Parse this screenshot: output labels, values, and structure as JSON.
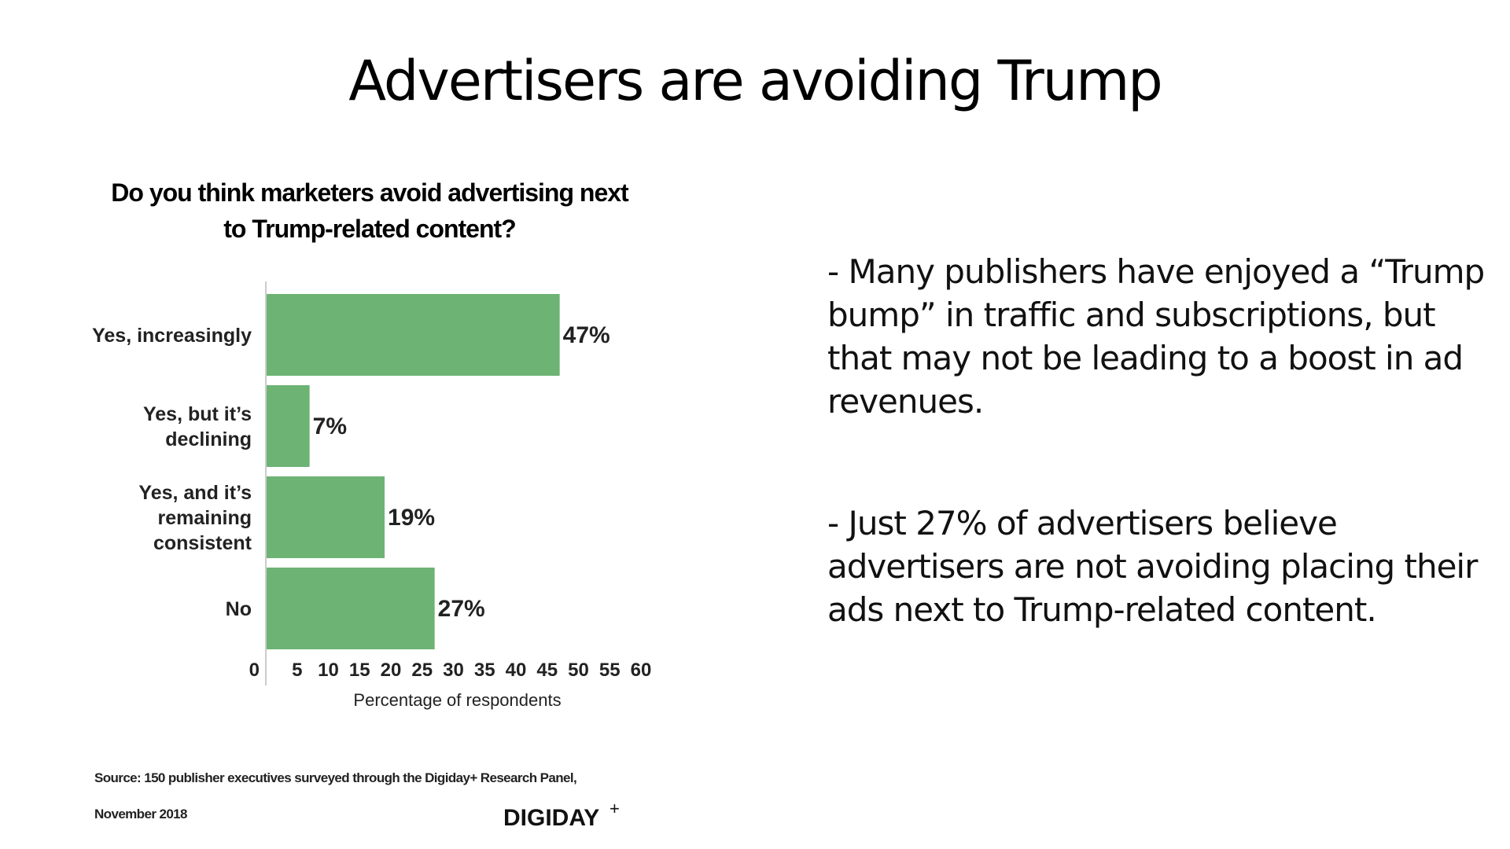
{
  "slide": {
    "title": "Advertisers are avoiding Trump",
    "bullets": [
      "- Many publishers have enjoyed a “Trump bump” in traffic and subscriptions, but that may not be leading to a boost in ad revenues.",
      "- Just 27% of advertisers believe advertisers are not avoiding placing their ads next to Trump-related content."
    ]
  },
  "footer": {
    "source": "Source: 150 publisher executives surveyed through the Digiday+ Research Panel,",
    "date": "November 2018",
    "brand": "DIGIDAY",
    "brand_mark": "+"
  },
  "chart_data": {
    "type": "bar",
    "orientation": "horizontal",
    "title_lines": [
      "Do you think marketers avoid advertising next",
      "to Trump-related content?"
    ],
    "categories": [
      [
        "Yes, increasingly"
      ],
      [
        "Yes, but it’s",
        "declining"
      ],
      [
        "Yes, and it’s",
        "remaining",
        "consistent"
      ],
      [
        "No"
      ]
    ],
    "values": [
      47,
      7,
      19,
      27
    ],
    "data_labels": [
      "47%",
      "7%",
      "19%",
      "27%"
    ],
    "xlabel": "Percentage of respondents",
    "ylabel": "",
    "xlim": [
      0,
      60
    ],
    "xticks": [
      0,
      5,
      10,
      15,
      20,
      25,
      30,
      35,
      40,
      45,
      50,
      55,
      60
    ],
    "bar_color": "#6db373",
    "grid": false
  }
}
